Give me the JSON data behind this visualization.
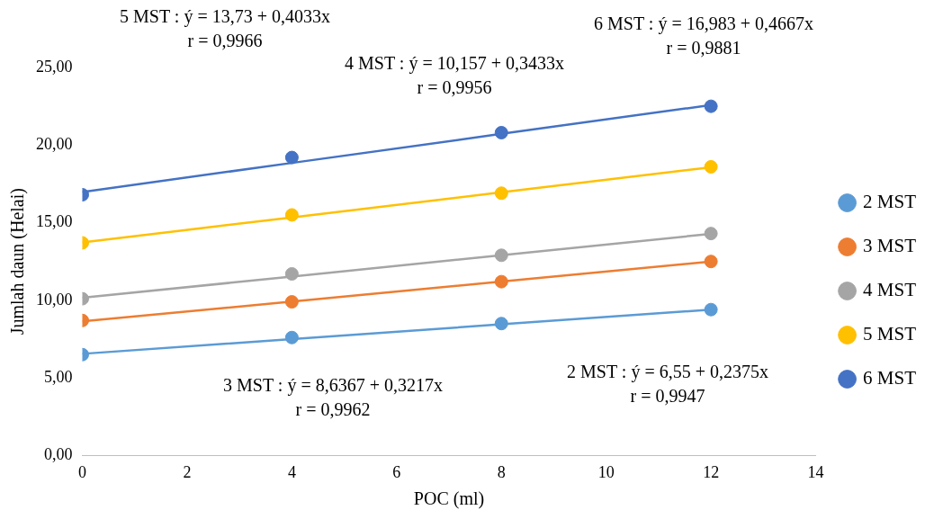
{
  "chart_data": {
    "type": "scatter",
    "xlabel": "POC (ml)",
    "ylabel": "Jumlah daun (Helai)",
    "xlim": [
      0,
      14
    ],
    "xticks": [
      0,
      2,
      4,
      6,
      8,
      10,
      12,
      14
    ],
    "ylim": [
      0,
      25
    ],
    "yticks": [
      {
        "value": 0,
        "label": "0,00"
      },
      {
        "value": 5,
        "label": "5,00"
      },
      {
        "value": 10,
        "label": "10,00"
      },
      {
        "value": 15,
        "label": "15,00"
      },
      {
        "value": 20,
        "label": "20,00"
      },
      {
        "value": 25,
        "label": "25,00"
      }
    ],
    "grid": false,
    "legend": "right",
    "x": [
      0,
      4,
      8,
      12
    ],
    "series": [
      {
        "name": "2 MST",
        "color": "#5b9bd5",
        "marker": "circle",
        "values": [
          6.5,
          7.6,
          8.5,
          9.4
        ]
      },
      {
        "name": "3 MST",
        "color": "#ed7d31",
        "marker": "circle",
        "values": [
          8.7,
          9.9,
          11.2,
          12.5
        ]
      },
      {
        "name": "4 MST",
        "color": "#a5a5a5",
        "marker": "circle",
        "values": [
          10.1,
          11.7,
          12.9,
          14.3
        ]
      },
      {
        "name": "5 MST",
        "color": "#ffc000",
        "marker": "circle",
        "values": [
          13.7,
          15.5,
          16.9,
          18.6
        ]
      },
      {
        "name": "6 MST",
        "color": "#4472c4",
        "marker": "circle",
        "values": [
          16.8,
          19.2,
          20.8,
          22.5
        ]
      },
      {
        "type": "line",
        "color": "#5b9bd5",
        "marker": "none",
        "values": [
          6.55,
          7.5,
          8.45,
          9.4
        ]
      },
      {
        "type": "line",
        "color": "#ed7d31",
        "marker": "none",
        "values": [
          8.64,
          9.92,
          11.21,
          12.5
        ]
      },
      {
        "type": "line",
        "color": "#a5a5a5",
        "marker": "none",
        "values": [
          10.16,
          11.53,
          12.9,
          14.28
        ]
      },
      {
        "type": "line",
        "color": "#ffc000",
        "marker": "none",
        "values": [
          13.73,
          15.34,
          16.96,
          18.57
        ]
      },
      {
        "type": "line",
        "color": "#4472c4",
        "marker": "none",
        "values": [
          16.98,
          18.85,
          20.72,
          22.58
        ]
      }
    ],
    "annotations": [
      "5 MST : ý = 13,73 + 0,4033x\nr = 0,9966",
      "6 MST : ý = 16,983 + 0,4667x\nr = 0,9881",
      "4 MST : ý = 10,157 + 0,3433x\nr = 0,9956",
      "3 MST : ý = 8,6367 + 0,3217x\nr = 0,9962",
      "2 MST : ý = 6,55 + 0,2375x\nr = 0,9947"
    ]
  }
}
